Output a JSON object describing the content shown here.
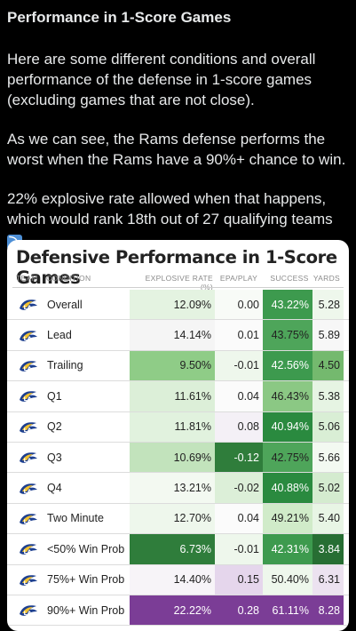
{
  "post": {
    "title": "Performance in 1-Score Games",
    "p1": "Here are some different conditions and overall performance of the defense in 1-score games (excluding games that are not close).",
    "p2": "As we can see, the Rams defense performs the worst when the Rams have a 90%+ chance to win.",
    "p3": "22% explosive rate allowed when that happens, which would rank 18th out of 27 qualifying teams",
    "emoji_icon": "down-right-arrow-emoji",
    "emoji_glyph": "⤵"
  },
  "table": {
    "title": "Defensive Performance in 1-Score Games",
    "headers": {
      "team": "TEAM",
      "condition": "CONDITION",
      "explosive": "EXPLOSIVE RATE (%)",
      "epa": "EPA/PLAY",
      "success": "SUCCESS",
      "yards": "YARDS"
    },
    "logo_icon": "rams-logo-icon",
    "rows": [
      {
        "condition": "Overall",
        "explosive": "12.09%",
        "epa": "0.00",
        "success": "43.22%",
        "yards": "5.28",
        "colors": {
          "exp": "#e4f3e1",
          "epa": "#f8fbf7",
          "succ": "#3d9a4e",
          "yds": "#eef7ec"
        },
        "text": {
          "exp": "#222",
          "epa": "#222",
          "succ": "#fff",
          "yds": "#222"
        }
      },
      {
        "condition": "Lead",
        "explosive": "14.14%",
        "epa": "0.01",
        "success": "43.75%",
        "yards": "5.89",
        "colors": {
          "exp": "#f5f5f5",
          "epa": "#fbfbfb",
          "succ": "#4ea55a",
          "yds": "#f7f7f7"
        },
        "text": {
          "exp": "#222",
          "epa": "#222",
          "succ": "#222",
          "yds": "#222"
        }
      },
      {
        "condition": "Trailing",
        "explosive": "9.50%",
        "epa": "-0.01",
        "success": "42.56%",
        "yards": "4.50",
        "colors": {
          "exp": "#8fcc87",
          "epa": "#eef7ec",
          "succ": "#3d9a4e",
          "yds": "#74b96e"
        },
        "text": {
          "exp": "#222",
          "epa": "#222",
          "succ": "#fff",
          "yds": "#222"
        }
      },
      {
        "condition": "Q1",
        "explosive": "11.61%",
        "epa": "0.04",
        "success": "46.43%",
        "yards": "5.38",
        "colors": {
          "exp": "#dcefd8",
          "epa": "#fbfbfb",
          "succ": "#8bc884",
          "yds": "#e6f4e3"
        },
        "text": {
          "exp": "#222",
          "epa": "#222",
          "succ": "#222",
          "yds": "#222"
        }
      },
      {
        "condition": "Q2",
        "explosive": "11.81%",
        "epa": "0.08",
        "success": "40.94%",
        "yards": "5.06",
        "colors": {
          "exp": "#e1f2de",
          "epa": "#f4f0f6",
          "succ": "#2a8a3f",
          "yds": "#d9eed5"
        },
        "text": {
          "exp": "#222",
          "epa": "#222",
          "succ": "#fff",
          "yds": "#222"
        }
      },
      {
        "condition": "Q3",
        "explosive": "10.69%",
        "epa": "-0.12",
        "success": "42.75%",
        "yards": "5.66",
        "colors": {
          "exp": "#c2e3bc",
          "epa": "#2f7d3b",
          "succ": "#4ea55a",
          "yds": "#f3f9f1"
        },
        "text": {
          "exp": "#222",
          "epa": "#fff",
          "succ": "#222",
          "yds": "#222"
        }
      },
      {
        "condition": "Q4",
        "explosive": "13.21%",
        "epa": "-0.02",
        "success": "40.88%",
        "yards": "5.02",
        "colors": {
          "exp": "#f3f9f1",
          "epa": "#dcefd8",
          "succ": "#2a8a3f",
          "yds": "#d4ebcf"
        },
        "text": {
          "exp": "#222",
          "epa": "#222",
          "succ": "#fff",
          "yds": "#222"
        }
      },
      {
        "condition": "Two Minute",
        "explosive": "12.70%",
        "epa": "0.04",
        "success": "49.21%",
        "yards": "5.40",
        "colors": {
          "exp": "#eef7ec",
          "epa": "#fbfbfb",
          "succ": "#d0ebc9",
          "yds": "#e8f5e5"
        },
        "text": {
          "exp": "#222",
          "epa": "#222",
          "succ": "#222",
          "yds": "#222"
        }
      },
      {
        "condition": "<50% Win Prob",
        "explosive": "6.73%",
        "epa": "-0.01",
        "success": "42.31%",
        "yards": "3.84",
        "colors": {
          "exp": "#2f7d3b",
          "epa": "#eef7ec",
          "succ": "#3d9a4e",
          "yds": "#276e33"
        },
        "text": {
          "exp": "#fff",
          "epa": "#222",
          "succ": "#fff",
          "yds": "#fff"
        }
      },
      {
        "condition": "75%+ Win Prob",
        "explosive": "14.40%",
        "epa": "0.15",
        "success": "50.40%",
        "yards": "6.31",
        "colors": {
          "exp": "#f7f4f8",
          "epa": "#e5d6ec",
          "succ": "#eef7ec",
          "yds": "#ece2f0"
        },
        "text": {
          "exp": "#222",
          "epa": "#222",
          "succ": "#222",
          "yds": "#222"
        }
      },
      {
        "condition": "90%+ Win Prob",
        "explosive": "22.22%",
        "epa": "0.28",
        "success": "61.11%",
        "yards": "8.28",
        "colors": {
          "exp": "#7b3d96",
          "epa": "#7b3d96",
          "succ": "#7b3d96",
          "yds": "#7b3d96"
        },
        "text": {
          "exp": "#fff",
          "epa": "#fff",
          "succ": "#fff",
          "yds": "#fff"
        }
      }
    ]
  }
}
